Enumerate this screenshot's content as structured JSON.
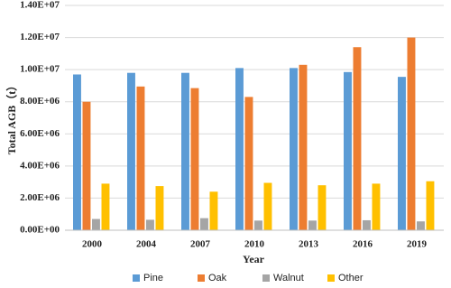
{
  "chart_data": {
    "type": "bar",
    "x_label": "Year",
    "y_label": "Total AGB（t）",
    "categories": [
      "2000",
      "2004",
      "2007",
      "2010",
      "2013",
      "2016",
      "2019"
    ],
    "series": [
      {
        "name": "Pine",
        "color": "#5b9bd5",
        "values": [
          9700000,
          9800000,
          9800000,
          10100000,
          10100000,
          9850000,
          9550000
        ]
      },
      {
        "name": "Oak",
        "color": "#ed7d31",
        "values": [
          8000000,
          8950000,
          8850000,
          8300000,
          10300000,
          11400000,
          12000000
        ]
      },
      {
        "name": "Walnut",
        "color": "#a5a5a5",
        "values": [
          700000,
          650000,
          750000,
          600000,
          600000,
          620000,
          550000
        ]
      },
      {
        "name": "Other",
        "color": "#ffc000",
        "values": [
          2900000,
          2750000,
          2400000,
          2950000,
          2800000,
          2900000,
          3050000
        ]
      }
    ],
    "ylim": [
      0,
      14000000
    ],
    "yticks": [
      {
        "value": 0,
        "label": "0.00E+00"
      },
      {
        "value": 2000000,
        "label": "2.00E+06"
      },
      {
        "value": 4000000,
        "label": "4.00E+06"
      },
      {
        "value": 6000000,
        "label": "6.00E+06"
      },
      {
        "value": 8000000,
        "label": "8.00E+06"
      },
      {
        "value": 10000000,
        "label": "1.00E+07"
      },
      {
        "value": 12000000,
        "label": "1.20E+07"
      },
      {
        "value": 14000000,
        "label": "1.40E+07"
      }
    ],
    "grid": true,
    "legend": "bottom"
  }
}
